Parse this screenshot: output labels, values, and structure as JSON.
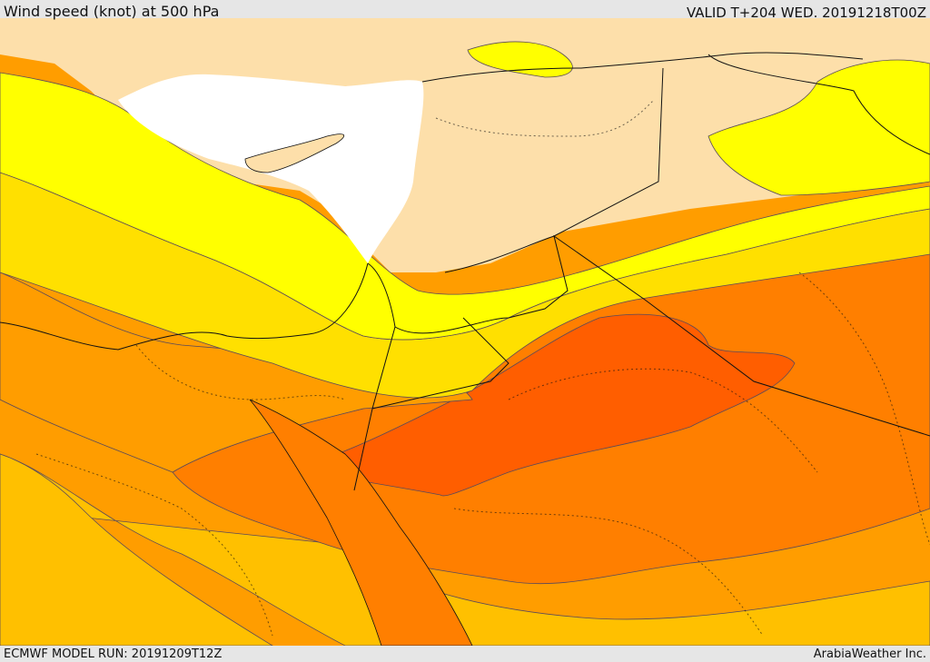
{
  "header": {
    "title": "Wind speed (knot) at 500 hPa",
    "valid": "VALID T+204 WED. 20191218T00Z"
  },
  "footer": {
    "model_run": "ECMWF MODEL RUN: 20191209T12Z",
    "provider": "ArabiaWeather Inc."
  },
  "colors": {
    "land": "#fddfaa",
    "sea": "#ffffff",
    "band_1": "#ffff00",
    "band_2": "#ffe000",
    "band_3": "#ffc000",
    "band_4": "#ff9d00",
    "band_5": "#ff7f00",
    "band_6": "#ff5e00",
    "border": "#111111",
    "contour": "#5a4a5a"
  }
}
